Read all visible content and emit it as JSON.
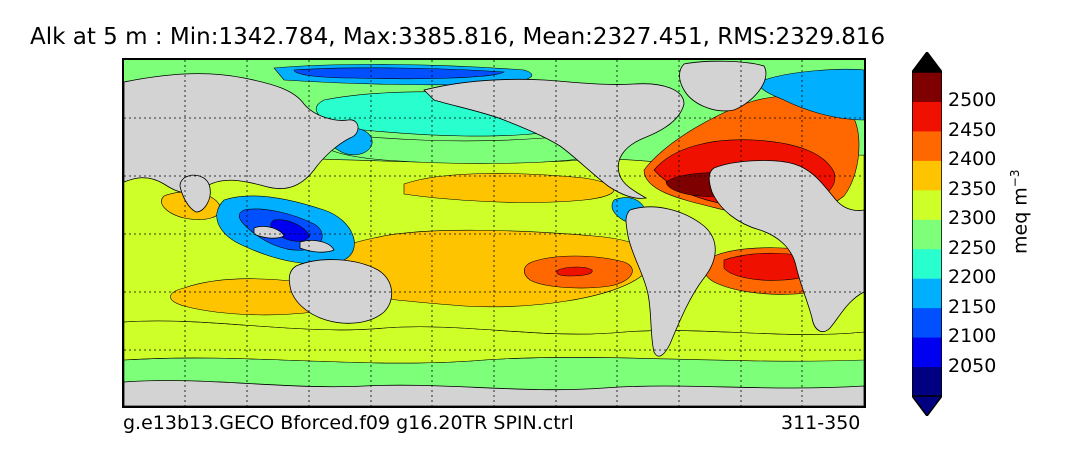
{
  "title": "Alk at 5 m : Min:1342.784, Max:3385.816, Mean:2327.451, RMS:2329.816",
  "footer": {
    "case_name": "g.e13b13.GECO Bforced.f09 g16.20TR SPIN.ctrl",
    "years": "311-350"
  },
  "colorbar": {
    "label": "meq m",
    "label_exponent": "−3",
    "levels": [
      {
        "value": "2050",
        "color": "#000080"
      },
      {
        "value": "2100",
        "color": "#0000f0"
      },
      {
        "value": "2150",
        "color": "#0050ff"
      },
      {
        "value": "2200",
        "color": "#00b0ff"
      },
      {
        "value": "2250",
        "color": "#29ffce"
      },
      {
        "value": "2300",
        "color": "#7dff7a"
      },
      {
        "value": "2350",
        "color": "#ceff29"
      },
      {
        "value": "2400",
        "color": "#ffc400"
      },
      {
        "value": "2450",
        "color": "#ff6800"
      },
      {
        "value": "2500",
        "color": "#f01000"
      }
    ],
    "under_color": "#000080",
    "top_color": "#7f0000",
    "over_color": "#000000"
  },
  "map": {
    "land_color": "#d3d3d3",
    "ocean_base_color": "#7dff7a",
    "gridlines": "dotted"
  }
}
